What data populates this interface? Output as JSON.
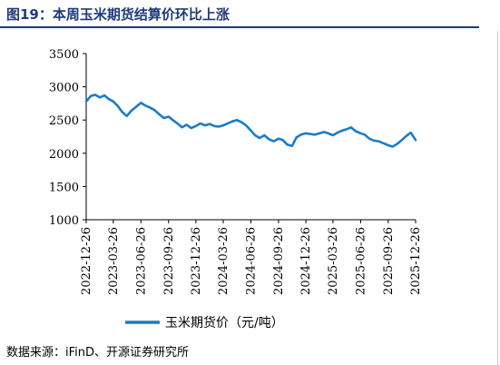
{
  "figure": {
    "title": "图19：本周玉米期货结算价环比上涨",
    "source": "数据来源：iFinD、开源证券研究所"
  },
  "chart_data": {
    "type": "line",
    "title": "",
    "xlabel": "",
    "ylabel": "",
    "ylim": [
      1000,
      3500
    ],
    "yticks": [
      1000,
      1500,
      2000,
      2500,
      3000,
      3500
    ],
    "xlim": [
      "2022-12-26",
      "2025-12-26"
    ],
    "xticks": [
      "2022-12-26",
      "2023-03-26",
      "2023-06-26",
      "2023-09-26",
      "2023-12-26",
      "2024-03-26",
      "2024-06-26",
      "2024-09-26",
      "2024-12-26",
      "2025-03-26",
      "2025-06-26",
      "2025-09-26",
      "2025-12-26"
    ],
    "grid": false,
    "legend_position": "bottom",
    "color": "#1a7cc7",
    "series": [
      {
        "name": "玉米期货价（元/吨）",
        "x": [
          "2022-12-26",
          "2023-01-10",
          "2023-01-25",
          "2023-02-10",
          "2023-02-25",
          "2023-03-10",
          "2023-03-26",
          "2023-04-10",
          "2023-04-25",
          "2023-05-10",
          "2023-05-25",
          "2023-06-10",
          "2023-06-26",
          "2023-07-10",
          "2023-07-25",
          "2023-08-10",
          "2023-08-25",
          "2023-09-10",
          "2023-09-26",
          "2023-10-10",
          "2023-10-25",
          "2023-11-10",
          "2023-11-25",
          "2023-12-10",
          "2023-12-26",
          "2024-01-10",
          "2024-01-25",
          "2024-02-10",
          "2024-02-25",
          "2024-03-10",
          "2024-03-26",
          "2024-04-10",
          "2024-04-25",
          "2024-05-10",
          "2024-05-25",
          "2024-06-10",
          "2024-06-26",
          "2024-07-10",
          "2024-07-25",
          "2024-08-10",
          "2024-08-25",
          "2024-09-10",
          "2024-09-26",
          "2024-10-10",
          "2024-10-25",
          "2024-11-10",
          "2024-11-25",
          "2024-12-10",
          "2024-12-26",
          "2025-01-10",
          "2025-01-25",
          "2025-02-10",
          "2025-02-25",
          "2025-03-10",
          "2025-03-26",
          "2025-04-10",
          "2025-04-25",
          "2025-05-10",
          "2025-05-25",
          "2025-06-10",
          "2025-06-26",
          "2025-07-10",
          "2025-07-25",
          "2025-08-10",
          "2025-08-25",
          "2025-09-10",
          "2025-09-26",
          "2025-10-10",
          "2025-10-25",
          "2025-11-10",
          "2025-11-25",
          "2025-12-10",
          "2025-12-26"
        ],
        "values": [
          2780,
          2860,
          2880,
          2840,
          2870,
          2820,
          2780,
          2710,
          2620,
          2560,
          2640,
          2700,
          2760,
          2720,
          2690,
          2650,
          2590,
          2530,
          2550,
          2500,
          2450,
          2390,
          2430,
          2380,
          2410,
          2450,
          2420,
          2440,
          2410,
          2400,
          2420,
          2450,
          2480,
          2500,
          2470,
          2420,
          2340,
          2270,
          2230,
          2270,
          2210,
          2180,
          2220,
          2200,
          2130,
          2110,
          2240,
          2280,
          2300,
          2290,
          2280,
          2300,
          2320,
          2300,
          2270,
          2310,
          2340,
          2360,
          2390,
          2330,
          2300,
          2280,
          2220,
          2190,
          2180,
          2150,
          2120,
          2100,
          2140,
          2200,
          2260,
          2310,
          2200
        ]
      }
    ]
  }
}
